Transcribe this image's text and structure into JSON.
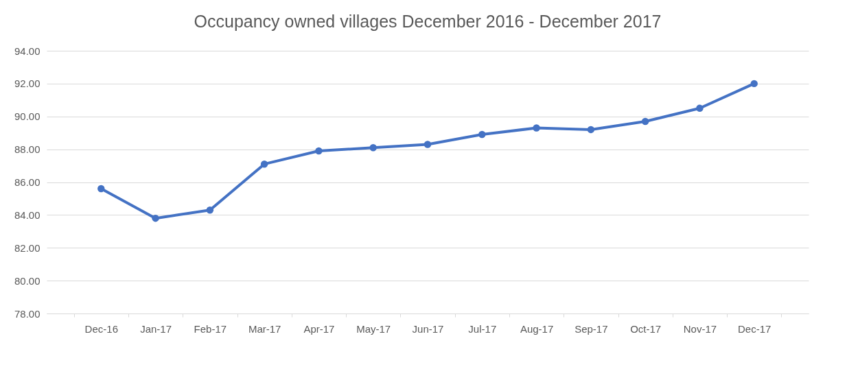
{
  "chart_data": {
    "type": "line",
    "title": "Occupancy owned villages December 2016 - December 2017",
    "categories": [
      "Dec-16",
      "Jan-17",
      "Feb-17",
      "Mar-17",
      "Apr-17",
      "May-17",
      "Jun-17",
      "Jul-17",
      "Aug-17",
      "Sep-17",
      "Oct-17",
      "Nov-17",
      "Dec-17"
    ],
    "series": [
      {
        "color": "#4472c4",
        "values": [
          85.6,
          83.8,
          84.3,
          87.1,
          87.9,
          88.1,
          88.3,
          88.9,
          89.3,
          89.2,
          89.7,
          90.5,
          92.0
        ]
      }
    ],
    "ylim": [
      78,
      94
    ],
    "yticks": [
      {
        "value": 78,
        "label": "78.00"
      },
      {
        "value": 80,
        "label": "80.00"
      },
      {
        "value": 82,
        "label": "82.00"
      },
      {
        "value": 84,
        "label": "84.00"
      },
      {
        "value": 86,
        "label": "86.00"
      },
      {
        "value": 88,
        "label": "88.00"
      },
      {
        "value": 90,
        "label": "90.00"
      },
      {
        "value": 92,
        "label": "92.00"
      },
      {
        "value": 94,
        "label": "94.00"
      }
    ],
    "grid": "y",
    "marker": "circle",
    "line_style": "solid"
  }
}
